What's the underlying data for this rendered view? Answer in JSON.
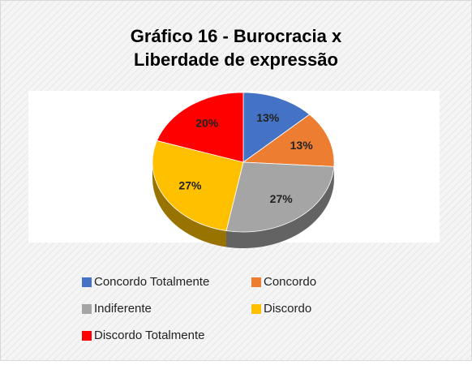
{
  "chart_data": {
    "type": "pie",
    "title": [
      "Gráfico 16 - Burocracia x",
      "Liberdade de expressão"
    ],
    "categories": [
      "Concordo Totalmente",
      "Concordo",
      "Indiferente",
      "Discordo",
      "Discordo Totalmente"
    ],
    "values": [
      13,
      13,
      27,
      27,
      20
    ],
    "value_labels": [
      "13%",
      "13%",
      "27%",
      "27%",
      "20%"
    ],
    "colors": [
      "#4472c4",
      "#ed7d31",
      "#a5a5a5",
      "#ffc000",
      "#ff0000"
    ]
  }
}
